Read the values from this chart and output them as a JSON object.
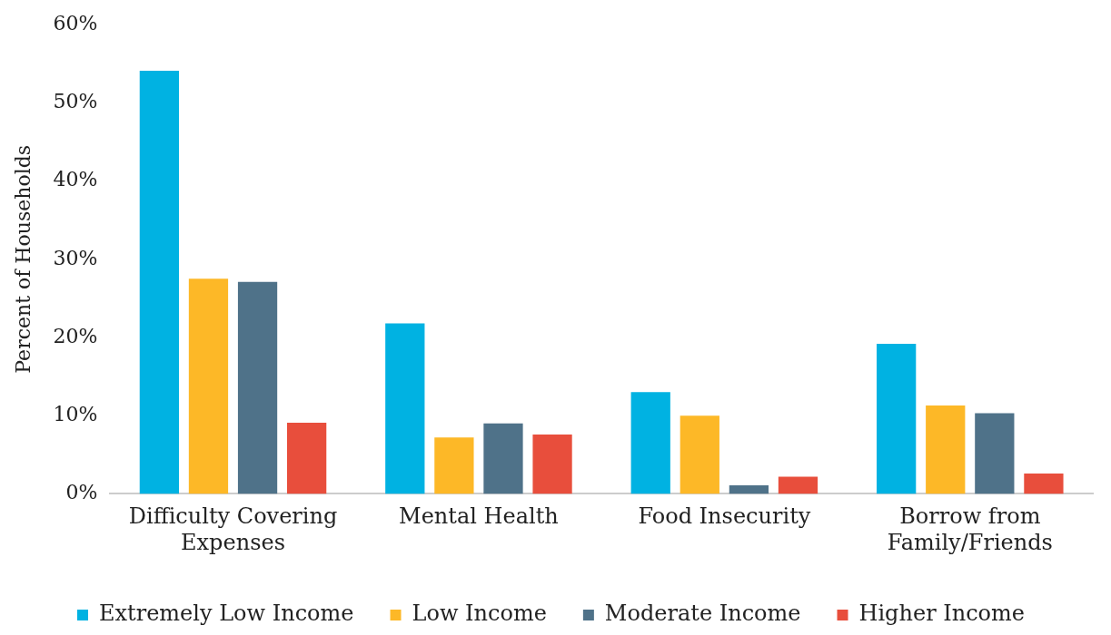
{
  "chart_data": {
    "type": "bar",
    "ylabel": "Percent of Households",
    "categories": [
      "Difficulty Covering Expenses",
      "Mental Health",
      "Food Insecurity",
      "Borrow from Family/Friends"
    ],
    "series": [
      {
        "name": "Extremely Low Income",
        "color": "#00b2e2",
        "values": [
          54.1,
          21.8,
          13.0,
          19.2
        ]
      },
      {
        "name": "Low Income",
        "color": "#fdb827",
        "values": [
          27.5,
          7.2,
          10.0,
          11.3
        ]
      },
      {
        "name": "Moderate Income",
        "color": "#4f7289",
        "values": [
          27.1,
          9.0,
          1.1,
          10.3
        ]
      },
      {
        "name": "Higher Income",
        "color": "#e84e3c",
        "values": [
          9.1,
          7.6,
          2.2,
          2.6
        ]
      }
    ],
    "ylim": [
      0,
      60
    ],
    "yticks": [
      {
        "value": 0,
        "label": "0%"
      },
      {
        "value": 10,
        "label": "10%"
      },
      {
        "value": 20,
        "label": "20%"
      },
      {
        "value": 30,
        "label": "30%"
      },
      {
        "value": 40,
        "label": "40%"
      },
      {
        "value": 50,
        "label": "50%"
      },
      {
        "value": 60,
        "label": "60%"
      }
    ],
    "grid": false,
    "legend": "bottom"
  }
}
